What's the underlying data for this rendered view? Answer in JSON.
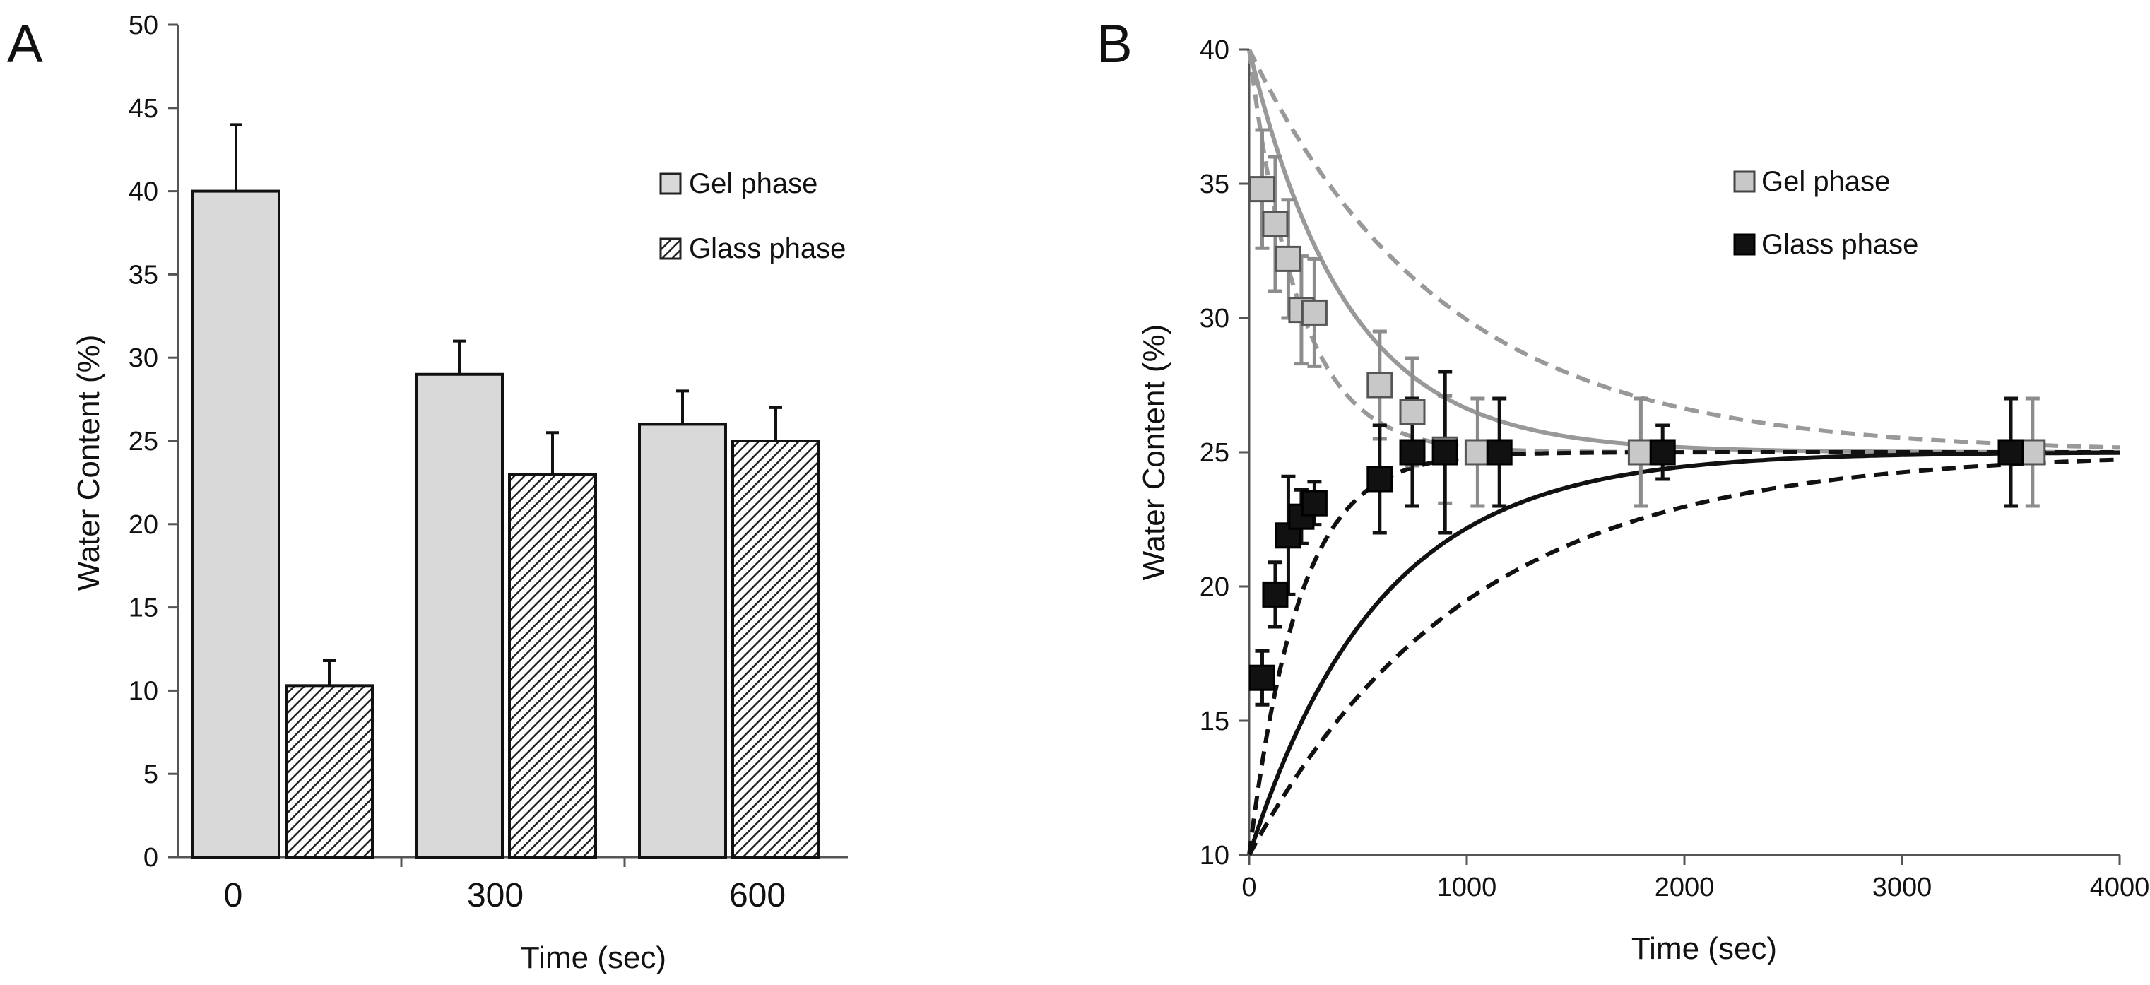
{
  "chart_data": [
    {
      "panel": "A",
      "type": "bar",
      "title": "",
      "xlabel": "Time (sec)",
      "ylabel": "Water Content (%)",
      "ylim": [
        0,
        50
      ],
      "yticks": [
        0,
        5,
        10,
        15,
        20,
        25,
        30,
        35,
        40,
        45,
        50
      ],
      "categories": [
        "0",
        "300",
        "600"
      ],
      "series": [
        {
          "name": "Gel phase",
          "fill": "solid",
          "color": "#d9d9d9",
          "values": [
            40,
            29,
            26
          ],
          "errors": [
            4,
            2,
            2
          ]
        },
        {
          "name": "Glass phase",
          "fill": "hatched",
          "color": "#333333",
          "values": [
            10.3,
            23,
            25
          ],
          "errors": [
            1.5,
            2.5,
            2
          ]
        }
      ],
      "legend": {
        "position": "top-right",
        "entries": [
          "Gel phase",
          "Glass phase"
        ]
      }
    },
    {
      "panel": "B",
      "type": "scatter",
      "title": "",
      "xlabel": "Time (sec)",
      "ylabel": "Water Content (%)",
      "xlim": [
        0,
        4000
      ],
      "ylim": [
        10,
        40
      ],
      "xticks": [
        0,
        1000,
        2000,
        3000,
        4000
      ],
      "yticks": [
        10,
        15,
        20,
        25,
        30,
        35,
        40
      ],
      "series": [
        {
          "name": "Gel phase",
          "marker": "square",
          "color": "#c8c8c8",
          "edge": "#555555",
          "x": [
            60,
            120,
            180,
            240,
            300,
            600,
            750,
            900,
            1050,
            1800,
            3600
          ],
          "y": [
            34.8,
            33.5,
            32.2,
            30.3,
            30.2,
            27.5,
            26.5,
            25.1,
            25.0,
            25.0,
            25.0
          ],
          "errors": [
            2.2,
            2.5,
            2.2,
            2.0,
            2.0,
            2.0,
            2.0,
            2.0,
            2.0,
            2.0,
            2.0
          ]
        },
        {
          "name": "Glass phase",
          "marker": "square",
          "color": "#111111",
          "edge": "#000000",
          "x": [
            60,
            120,
            180,
            240,
            300,
            600,
            750,
            900,
            1150,
            1900,
            3500
          ],
          "y": [
            16.6,
            19.7,
            21.9,
            22.6,
            23.1,
            24.0,
            25.0,
            25.0,
            25.0,
            25.0,
            25.0
          ],
          "errors": [
            1.0,
            1.2,
            2.2,
            1.0,
            0.8,
            2.0,
            2.0,
            3.0,
            2.0,
            1.0,
            2.0
          ]
        }
      ],
      "model_curves": [
        {
          "name": "gel-fast",
          "start": 40,
          "end": 25,
          "tau": 230,
          "color": "#999999",
          "style": "dashed"
        },
        {
          "name": "gel-mid",
          "start": 40,
          "end": 25,
          "tau": 450,
          "color": "#999999",
          "style": "solid"
        },
        {
          "name": "gel-slow",
          "start": 40,
          "end": 25,
          "tau": 900,
          "color": "#999999",
          "style": "dashed"
        },
        {
          "name": "glass-fast",
          "start": 10,
          "end": 25,
          "tau": 230,
          "color": "#111111",
          "style": "dashed"
        },
        {
          "name": "glass-mid",
          "start": 10,
          "end": 25,
          "tau": 600,
          "color": "#111111",
          "style": "solid"
        },
        {
          "name": "glass-slow",
          "start": 10,
          "end": 25,
          "tau": 1000,
          "color": "#111111",
          "style": "dashed"
        }
      ],
      "legend": {
        "position": "top-right",
        "entries": [
          "Gel phase",
          "Glass phase"
        ]
      }
    }
  ],
  "panels": {
    "a_label": "A",
    "b_label": "B"
  }
}
